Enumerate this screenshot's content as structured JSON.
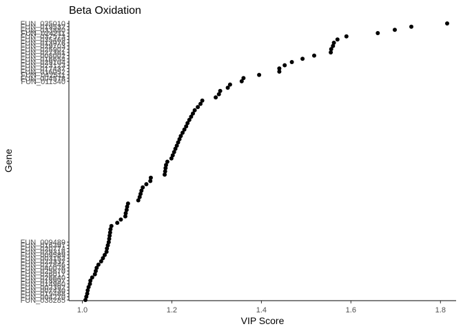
{
  "chart_data": {
    "type": "scatter",
    "title": "Beta Oxidation",
    "xlabel": "VIP Score",
    "ylabel": "Gene",
    "xlim": [
      0.97,
      1.835
    ],
    "xticks": [
      "1.0",
      "1.2",
      "1.4",
      "1.6",
      "1.8"
    ],
    "grid": false,
    "legend": "none",
    "point_color": "#000000",
    "ytick_labels_top": [
      "FUN_035010",
      "FUN_019532",
      "FUN_033880",
      "FUN_024211",
      "FUN_037573",
      "FUN_035469",
      "FUN_013976",
      "FUN_029703",
      "FUN_025902",
      "FUN_027361",
      "FUN_008002",
      "FUN_016654",
      "FUN_029104",
      "FUN_023123",
      "FUN_017437",
      "FUN_016052",
      "FUN_042511",
      "FUN_004578",
      "FUN_011340"
    ],
    "ytick_labels_bottom": [
      "FUN_038285",
      "FUN_004270",
      "FUN_019488",
      "FUN_007430",
      "FUN_002392",
      "FUN_014960",
      "FUN_018997",
      "FUN_026640",
      "FUN_026017",
      "FUN_025670",
      "FUN_040076",
      "FUN_027846",
      "FUN_022337",
      "FUN_003152",
      "FUN_009589",
      "FUN_029316",
      "FUN_020774",
      "FUN_016397",
      "FUN_009489"
    ],
    "values": [
      1.815,
      1.735,
      1.698,
      1.66,
      1.59,
      1.57,
      1.562,
      1.56,
      1.556,
      1.555,
      1.518,
      1.492,
      1.468,
      1.452,
      1.44,
      1.44,
      1.395,
      1.36,
      1.356,
      1.33,
      1.325,
      1.308,
      1.305,
      1.298,
      1.268,
      1.264,
      1.258,
      1.251,
      1.247,
      1.243,
      1.239,
      1.235,
      1.232,
      1.228,
      1.224,
      1.22,
      1.217,
      1.214,
      1.211,
      1.208,
      1.205,
      1.202,
      1.199,
      1.19,
      1.187,
      1.186,
      1.185,
      1.184,
      1.153,
      1.152,
      1.143,
      1.135,
      1.132,
      1.13,
      1.128,
      1.125,
      1.102,
      1.1,
      1.099,
      1.097,
      1.096,
      1.086,
      1.078,
      1.065,
      1.063,
      1.062,
      1.061,
      1.06,
      1.059,
      1.057,
      1.055,
      1.054,
      1.05,
      1.046,
      1.042,
      1.036,
      1.032,
      1.03,
      1.028,
      1.022,
      1.018,
      1.017,
      1.014,
      1.012,
      1.011,
      1.009,
      1.007
    ]
  }
}
